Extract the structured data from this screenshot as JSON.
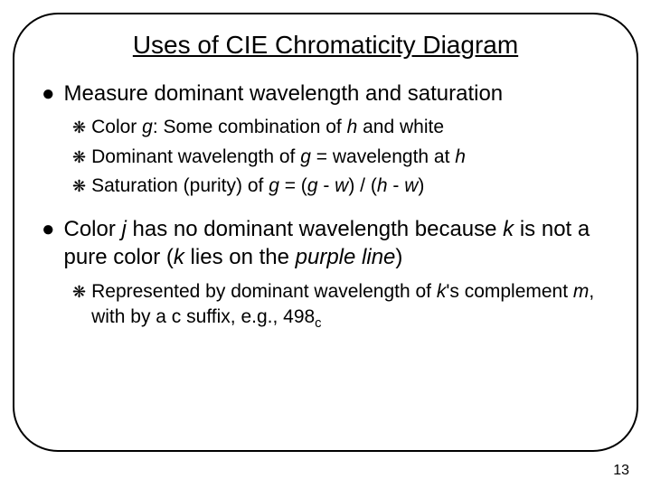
{
  "title": "Uses of CIE Chromaticity Diagram",
  "page_number": "13",
  "colors": {
    "background": "#ffffff",
    "text": "#000000",
    "border": "#000000"
  },
  "typography": {
    "title_fontsize": 28,
    "l1_fontsize": 24,
    "l2_fontsize": 21,
    "pagenum_fontsize": 16,
    "font_family": "Verdana"
  },
  "layout": {
    "border_radius": 50,
    "border_width": 2
  },
  "bullets": {
    "l1_marker": "●",
    "l2_marker": "❋"
  },
  "items": [
    {
      "level": 1,
      "html": "Measure dominant wavelength and saturation"
    },
    {
      "level": 2,
      "html": "Color <em class='var'>g</em>: Some combination of <em class='var'>h</em> and white"
    },
    {
      "level": 2,
      "html": "Dominant wavelength of <em class='var'>g</em> = wavelength at <em class='var'>h</em>"
    },
    {
      "level": 2,
      "html": "Saturation (purity) of <em class='var'>g</em> = (<em class='var'>g</em> - <em class='var'>w</em>) / (<em class='var'>h</em> - <em class='var'>w</em>)"
    },
    {
      "level": 0
    },
    {
      "level": 1,
      "html": "Color <em class='var'>j</em> has no dominant wavelength because <em class='var'>k</em> is not a pure color (<em class='var'>k</em> lies on the <em class='var'>purple line</em>)"
    },
    {
      "level": 2,
      "html": "Represented by dominant wavelength of <em class='var'>k</em>'s complement <em class='var'>m</em>, with by a c suffix, e.g., 498<span class='sub'>c</span>"
    }
  ]
}
